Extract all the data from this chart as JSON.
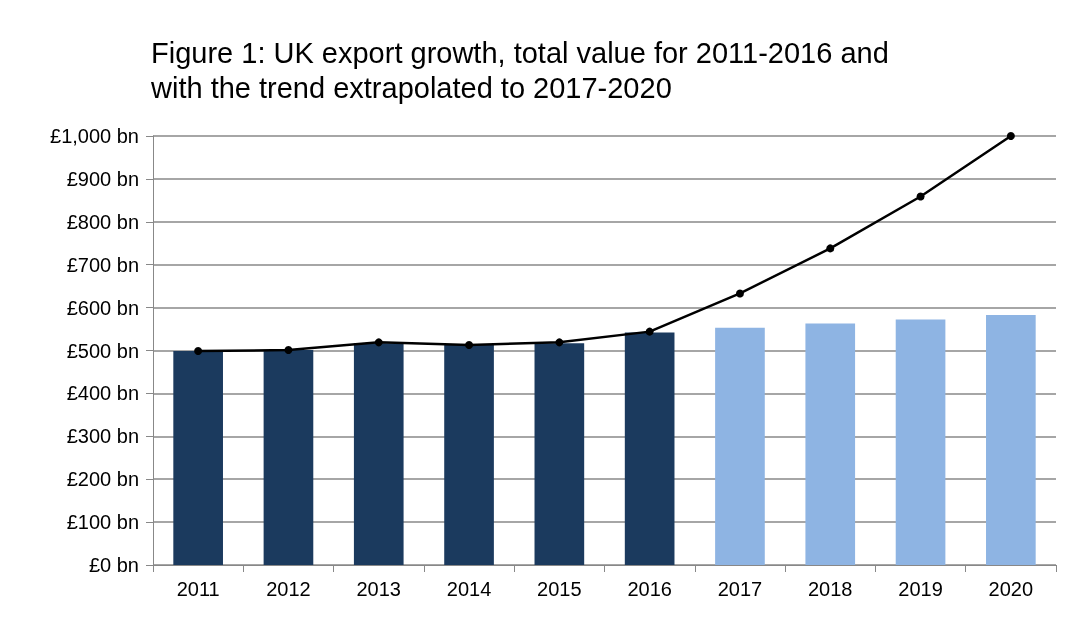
{
  "chart_data": {
    "type": "bar",
    "title": "Figure 1: UK export growth, total value for 2011-2016 and\nwith the trend extrapolated to 2017-2020",
    "categories": [
      "2011",
      "2012",
      "2013",
      "2014",
      "2015",
      "2016",
      "2017",
      "2018",
      "2019",
      "2020"
    ],
    "series": [
      {
        "values": [
          499,
          501,
          517,
          513,
          517,
          542,
          553,
          563,
          572,
          583
        ],
        "colors": [
          "#1b3a5e",
          "#1b3a5e",
          "#1b3a5e",
          "#1b3a5e",
          "#1b3a5e",
          "#1b3a5e",
          "#8eb4e3",
          "#8eb4e3",
          "#8eb4e3",
          "#8eb4e3"
        ]
      },
      {
        "type": "line",
        "color": "#000000",
        "marker": "circle",
        "line_style": "solid",
        "values": [
          499,
          501,
          519,
          513,
          519,
          544,
          633,
          738,
          859,
          1000
        ]
      }
    ],
    "ylim": [
      0,
      1000
    ],
    "yticks": [
      {
        "value": 0,
        "label": "£0 bn"
      },
      {
        "value": 100,
        "label": "£100 bn"
      },
      {
        "value": 200,
        "label": "£200 bn"
      },
      {
        "value": 300,
        "label": "£300 bn"
      },
      {
        "value": 400,
        "label": "£400 bn"
      },
      {
        "value": 500,
        "label": "£500 bn"
      },
      {
        "value": 600,
        "label": "£600 bn"
      },
      {
        "value": 700,
        "label": "£700 bn"
      },
      {
        "value": 800,
        "label": "£800 bn"
      },
      {
        "value": 900,
        "label": "£900 bn"
      },
      {
        "value": 1000,
        "label": "£1,000 bn"
      }
    ],
    "grid": "y"
  }
}
